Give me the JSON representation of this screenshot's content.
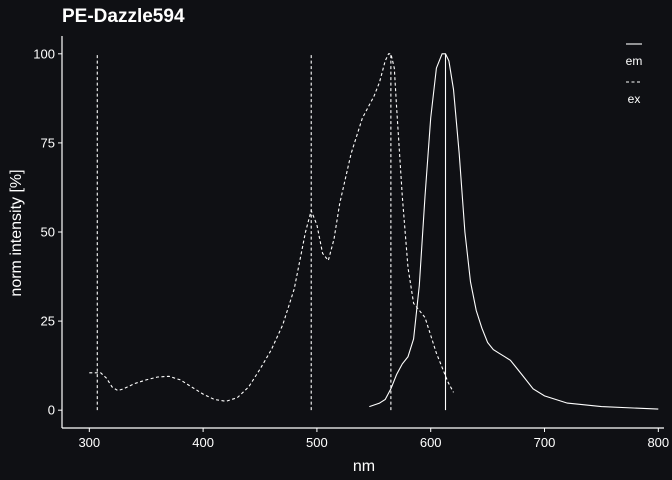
{
  "chart_data": {
    "type": "line",
    "title": "PE-Dazzle594",
    "xlabel": "nm",
    "ylabel": "norm intensity [%]",
    "xlim": [
      276,
      805
    ],
    "ylim": [
      -5,
      105
    ],
    "xticks": [
      300,
      400,
      500,
      600,
      700,
      800
    ],
    "yticks": [
      0,
      25,
      50,
      75,
      100
    ],
    "legend": {
      "position": "top-right",
      "entries": [
        "em",
        "ex"
      ]
    },
    "grid": false,
    "colors": {
      "background": "#0f1014",
      "foreground": "#ffffff"
    },
    "series": [
      {
        "name": "em",
        "line_style": "solid",
        "x": [
          546,
          555,
          560,
          565,
          570,
          575,
          580,
          585,
          590,
          595,
          600,
          605,
          610,
          613,
          616,
          620,
          625,
          630,
          635,
          640,
          645,
          650,
          655,
          660,
          665,
          670,
          675,
          680,
          690,
          700,
          720,
          750,
          800
        ],
        "y": [
          1,
          2,
          3,
          6,
          10,
          13,
          15,
          20,
          35,
          60,
          82,
          96,
          100,
          100,
          98,
          90,
          72,
          50,
          36,
          28,
          23,
          19,
          17,
          16,
          15,
          14,
          12,
          10,
          6,
          4,
          2,
          1,
          0.3
        ],
        "peak_markers": [
          613
        ]
      },
      {
        "name": "ex",
        "line_style": "dashed",
        "x": [
          300,
          305,
          310,
          315,
          320,
          325,
          330,
          340,
          350,
          360,
          370,
          380,
          390,
          400,
          410,
          420,
          430,
          440,
          450,
          460,
          470,
          480,
          490,
          495,
          500,
          505,
          510,
          515,
          520,
          530,
          540,
          550,
          555,
          560,
          563,
          565,
          568,
          570,
          575,
          580,
          585,
          590,
          595,
          600,
          605,
          610,
          615,
          620
        ],
        "y": [
          10.5,
          10.5,
          10.5,
          9,
          6.5,
          5.5,
          6,
          7.5,
          8.5,
          9.3,
          9.5,
          8.5,
          6.5,
          4.5,
          3,
          2.5,
          3.5,
          6.5,
          11.5,
          17,
          24,
          34,
          50,
          56,
          52,
          44,
          42,
          48,
          58,
          72,
          82,
          88,
          92,
          98,
          100,
          100,
          96,
          85,
          60,
          40,
          30,
          28,
          26,
          21,
          16,
          12,
          8,
          5
        ],
        "peak_markers": [
          307,
          495,
          565
        ]
      }
    ]
  }
}
